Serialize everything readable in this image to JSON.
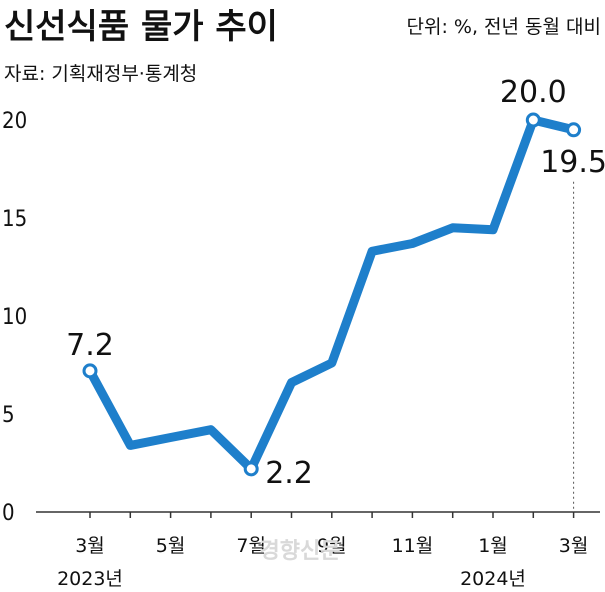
{
  "header": {
    "title": "신선식품 물가 추이",
    "unit": "단위: %, 전년 동월 대비",
    "source": "자료: 기획재정부·통계청"
  },
  "watermark": "경향신문",
  "colors": {
    "line": "#1e7fcb",
    "axis": "#333333",
    "marker_fill": "#ffffff"
  },
  "chart_data": {
    "type": "line",
    "title": "신선식품 물가 추이",
    "xlabel": "",
    "ylabel": "",
    "ylim": [
      0,
      20
    ],
    "yticks": [
      0,
      5,
      10,
      15,
      20
    ],
    "x": [
      "2023-03",
      "2023-04",
      "2023-05",
      "2023-06",
      "2023-07",
      "2023-08",
      "2023-09",
      "2023-10",
      "2023-11",
      "2023-12",
      "2024-01",
      "2024-02",
      "2024-03"
    ],
    "values": [
      7.2,
      3.4,
      3.8,
      4.2,
      2.2,
      6.6,
      7.6,
      13.3,
      13.7,
      14.5,
      14.4,
      20.0,
      19.5
    ],
    "xtick_labels": [
      {
        "index": 0,
        "label": "3월"
      },
      {
        "index": 2,
        "label": "5월"
      },
      {
        "index": 4,
        "label": "7월"
      },
      {
        "index": 6,
        "label": "9월"
      },
      {
        "index": 8,
        "label": "11월"
      },
      {
        "index": 10,
        "label": "1월"
      },
      {
        "index": 12,
        "label": "3월"
      }
    ],
    "year_labels": [
      {
        "index": 0,
        "label": "2023년"
      },
      {
        "index": 10,
        "label": "2024년"
      }
    ],
    "data_labels": [
      {
        "index": 0,
        "label": "7.2"
      },
      {
        "index": 4,
        "label": "2.2"
      },
      {
        "index": 11,
        "label": "20.0"
      },
      {
        "index": 12,
        "label": "19.5"
      }
    ],
    "markers": [
      0,
      4,
      11,
      12
    ],
    "grid": false
  }
}
